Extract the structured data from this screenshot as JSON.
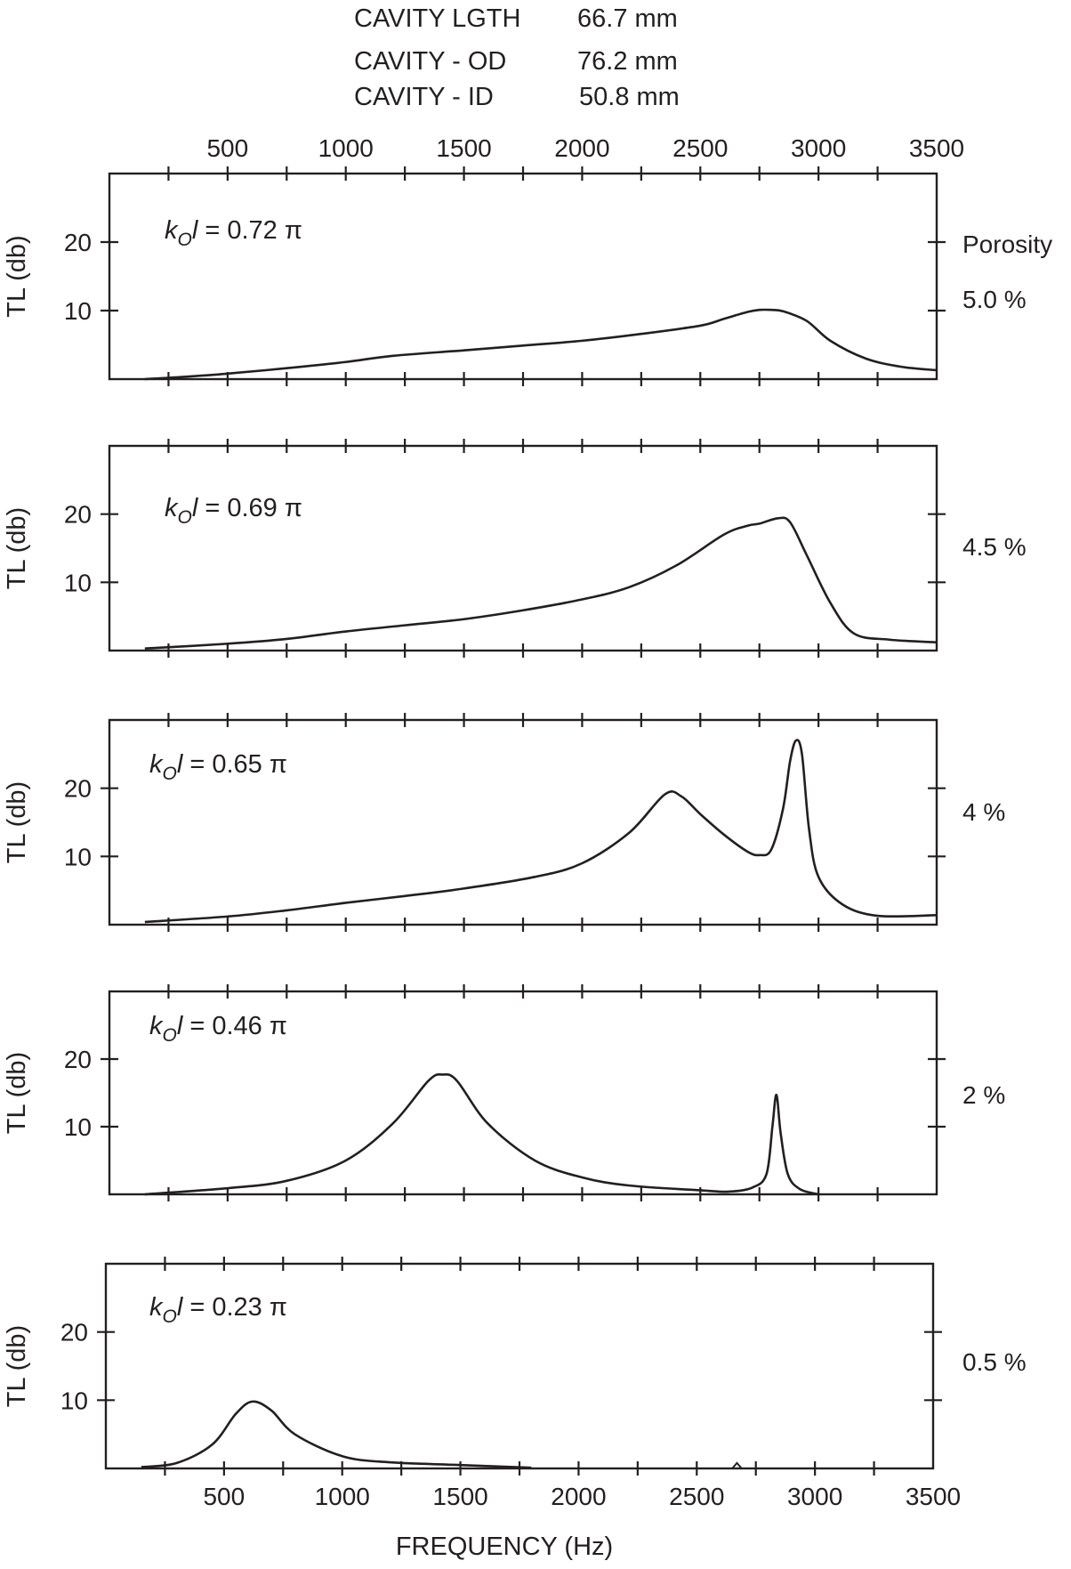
{
  "header": [
    {
      "label": "CAVITY LGTH",
      "value": "66.7 mm"
    },
    {
      "label": "CAVITY - OD",
      "value": "76.2 mm"
    },
    {
      "label": "CAVITY - ID",
      "value": "50.8 mm"
    }
  ],
  "right_title": "Porosity",
  "chart_data": [
    {
      "type": "line",
      "ylabel": "TL (db)",
      "annotation": {
        "k": "k",
        "sub": "O",
        "l": "l",
        "value": "=  0.72 π"
      },
      "porosity": "5.0 %",
      "xlim": [
        0,
        3500
      ],
      "ylim": [
        0,
        30
      ],
      "grid": false,
      "x": [
        150,
        300,
        500,
        750,
        1000,
        1200,
        1500,
        1750,
        2000,
        2250,
        2500,
        2600,
        2700,
        2750,
        2800,
        2850,
        2950,
        3050,
        3200,
        3350,
        3500
      ],
      "y": [
        0,
        0.3,
        0.8,
        1.6,
        2.5,
        3.4,
        4.2,
        4.9,
        5.6,
        6.6,
        7.8,
        8.8,
        9.8,
        10.1,
        10.1,
        9.9,
        8.5,
        5.6,
        3,
        1.8,
        1.3
      ]
    },
    {
      "type": "line",
      "ylabel": "TL (db)",
      "annotation": {
        "k": "k",
        "sub": "O",
        "l": "l",
        "value": "=  0.69 π"
      },
      "porosity": "4.5 %",
      "xlim": [
        0,
        3500
      ],
      "ylim": [
        0,
        30
      ],
      "grid": false,
      "x": [
        150,
        500,
        750,
        1000,
        1250,
        1500,
        1750,
        2000,
        2200,
        2400,
        2600,
        2700,
        2750,
        2830,
        2880,
        2950,
        3050,
        3150,
        3300,
        3500
      ],
      "y": [
        0.3,
        1,
        1.7,
        2.8,
        3.7,
        4.6,
        5.9,
        7.5,
        9.3,
        12.5,
        17,
        18.3,
        18.6,
        19.4,
        18.8,
        14,
        7,
        2.5,
        1.6,
        1.2
      ]
    },
    {
      "type": "line",
      "ylabel": "TL (db)",
      "annotation": {
        "k": "k",
        "sub": "O",
        "l": "l",
        "value": "=  0.65 π"
      },
      "porosity": "4 %",
      "xlim": [
        0,
        3500
      ],
      "ylim": [
        0,
        30
      ],
      "grid": false,
      "x": [
        150,
        500,
        750,
        1000,
        1250,
        1500,
        1800,
        2000,
        2200,
        2350,
        2420,
        2500,
        2600,
        2700,
        2750,
        2800,
        2850,
        2880,
        2905,
        2930,
        2960,
        3000,
        3100,
        3250,
        3500
      ],
      "y": [
        0.4,
        1.2,
        2.1,
        3.2,
        4.2,
        5.3,
        7,
        9,
        13.5,
        19.1,
        18.8,
        16.2,
        13.2,
        10.7,
        10.2,
        11,
        17,
        24,
        27,
        25,
        14,
        7,
        3,
        1.3,
        1.4
      ]
    },
    {
      "type": "line",
      "ylabel": "TL (db)",
      "annotation": {
        "k": "k",
        "sub": "O",
        "l": "l",
        "value": "=  0.46 π"
      },
      "porosity": "2 %",
      "xlim": [
        0,
        3500
      ],
      "ylim": [
        0,
        30
      ],
      "grid": false,
      "x": [
        150,
        500,
        750,
        1000,
        1200,
        1350,
        1410,
        1470,
        1600,
        1800,
        2000,
        2200,
        2500,
        2620,
        2720,
        2780,
        2805,
        2822,
        2840,
        2870,
        2920,
        3000
      ],
      "y": [
        0,
        0.9,
        2,
        5,
        10.5,
        16.8,
        17.7,
        16.8,
        10.5,
        5,
        2.5,
        1.3,
        0.6,
        0.4,
        1,
        3,
        10,
        14.7,
        9,
        3,
        0.8,
        0
      ]
    },
    {
      "type": "line",
      "ylabel": "TL (db)",
      "annotation": {
        "k": "k",
        "sub": "O",
        "l": "l",
        "value": "= 0.23 π"
      },
      "porosity": "0.5 %",
      "xlim": [
        0,
        3500
      ],
      "ylim": [
        0,
        30
      ],
      "grid": false,
      "x": [
        150,
        300,
        450,
        550,
        620,
        700,
        800,
        1000,
        1200,
        1500,
        1800
      ],
      "y": [
        0.2,
        0.8,
        3.5,
        8,
        9.8,
        8.5,
        5,
        1.8,
        0.9,
        0.5,
        0.1
      ],
      "blip": {
        "x": [
          2650,
          2670,
          2690
        ],
        "y": [
          0,
          0.8,
          0
        ]
      },
      "xlabel": "FREQUENCY (Hz)"
    }
  ],
  "x_ticks": [
    500,
    1000,
    1500,
    2000,
    2500,
    3000,
    3500
  ],
  "x_tick_labels": [
    "500",
    "1000",
    "1500",
    "2000",
    "2500",
    "3000",
    "3500"
  ],
  "x_minor_step": 250,
  "y_ticks": [
    10,
    20
  ],
  "y_tick_labels": [
    "10",
    "20"
  ],
  "xlabel": "FREQUENCY (Hz)"
}
